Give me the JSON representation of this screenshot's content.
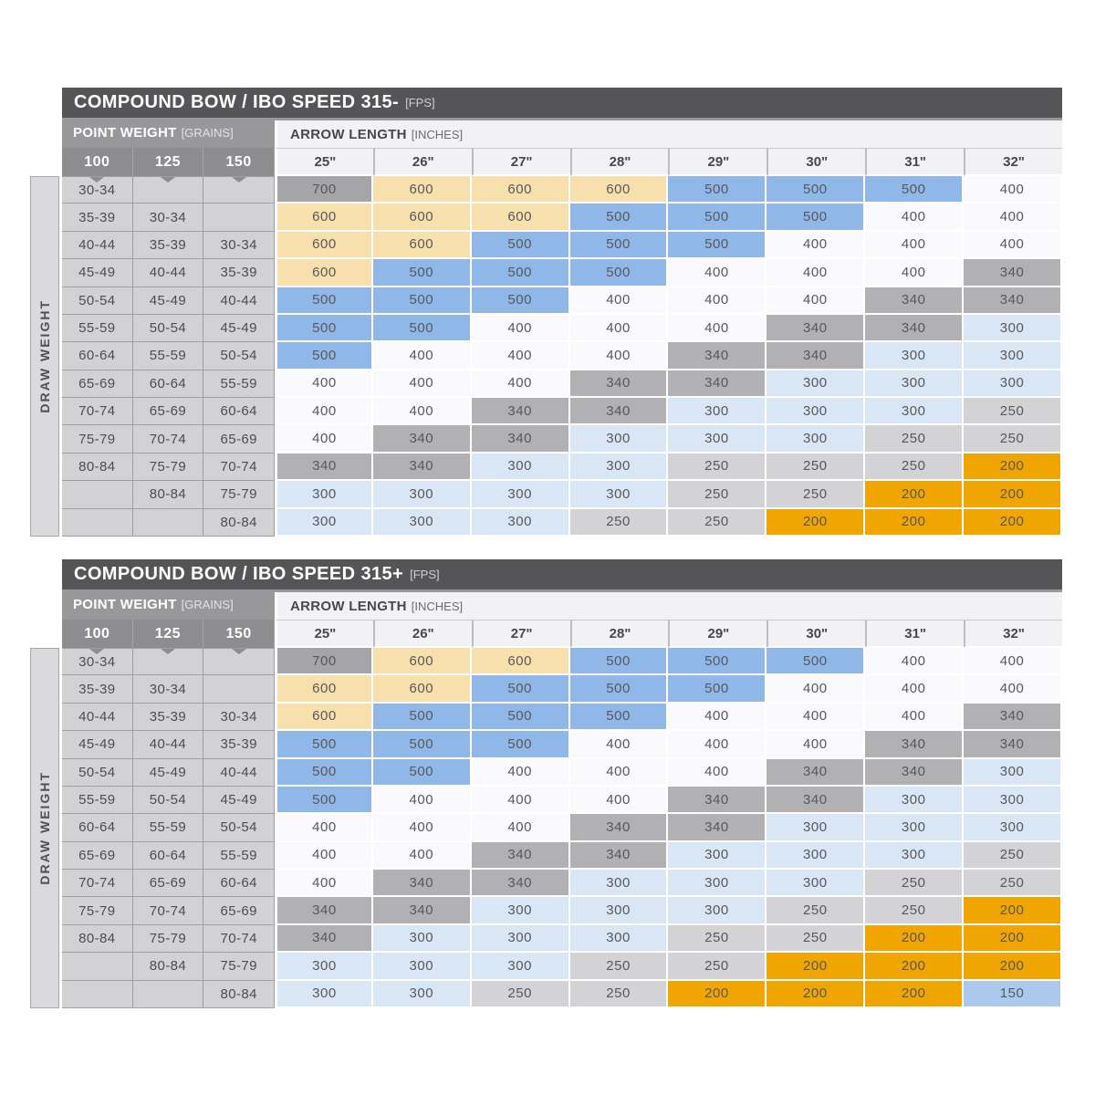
{
  "labels": {
    "fps_unit": "[FPS]",
    "point_weight": "POINT WEIGHT",
    "point_weight_unit": "[GRAINS]",
    "arrow_length": "ARROW LENGTH",
    "arrow_length_unit": "[INCHES]",
    "draw_weight": "DRAW WEIGHT"
  },
  "colors": {
    "title_bar_bg": "#555558",
    "point_weight_band_bg": "#98989b",
    "point_weight_header_bg": "#8d8d90",
    "arrow_length_band_bg": "#f2f2f4",
    "draw_weight_gutter_bg": "#dadadc",
    "draw_weight_cell_bg": "#d2d2d4",
    "cell_text": "#58585b",
    "spine": {
      "700": "#a5a5a8",
      "600": "#f7e0ab",
      "500": "#8fb7e8",
      "400": "#fafafc",
      "340": "#b1b1b4",
      "300": "#d9e6f6",
      "250": "#d3d3d5",
      "200": "#f0a500",
      "150": "#abc8ed"
    }
  },
  "chart_data": [
    {
      "type": "table",
      "title": "COMPOUND BOW / IBO SPEED 315-",
      "title_unit": "[FPS]",
      "point_weight_header": {
        "label": "POINT WEIGHT",
        "unit": "[GRAINS]",
        "columns": [
          "100",
          "125",
          "150"
        ]
      },
      "arrow_length_header": {
        "label": "ARROW LENGTH",
        "unit": "[INCHES]",
        "columns": [
          "25\"",
          "26\"",
          "27\"",
          "28\"",
          "29\"",
          "30\"",
          "31\"",
          "32\""
        ]
      },
      "draw_weight_label": "DRAW WEIGHT",
      "rows": [
        {
          "point_weights": [
            "30-34",
            "",
            ""
          ],
          "spines": [
            "700",
            "600",
            "600",
            "600",
            "500",
            "500",
            "500",
            "400"
          ]
        },
        {
          "point_weights": [
            "35-39",
            "30-34",
            ""
          ],
          "spines": [
            "600",
            "600",
            "600",
            "500",
            "500",
            "500",
            "400",
            "400"
          ]
        },
        {
          "point_weights": [
            "40-44",
            "35-39",
            "30-34"
          ],
          "spines": [
            "600",
            "600",
            "500",
            "500",
            "500",
            "400",
            "400",
            "400"
          ]
        },
        {
          "point_weights": [
            "45-49",
            "40-44",
            "35-39"
          ],
          "spines": [
            "600",
            "500",
            "500",
            "500",
            "400",
            "400",
            "400",
            "340"
          ]
        },
        {
          "point_weights": [
            "50-54",
            "45-49",
            "40-44"
          ],
          "spines": [
            "500",
            "500",
            "500",
            "400",
            "400",
            "400",
            "340",
            "340"
          ]
        },
        {
          "point_weights": [
            "55-59",
            "50-54",
            "45-49"
          ],
          "spines": [
            "500",
            "500",
            "400",
            "400",
            "400",
            "340",
            "340",
            "300"
          ]
        },
        {
          "point_weights": [
            "60-64",
            "55-59",
            "50-54"
          ],
          "spines": [
            "500",
            "400",
            "400",
            "400",
            "340",
            "340",
            "300",
            "300"
          ]
        },
        {
          "point_weights": [
            "65-69",
            "60-64",
            "55-59"
          ],
          "spines": [
            "400",
            "400",
            "400",
            "340",
            "340",
            "300",
            "300",
            "300"
          ]
        },
        {
          "point_weights": [
            "70-74",
            "65-69",
            "60-64"
          ],
          "spines": [
            "400",
            "400",
            "340",
            "340",
            "300",
            "300",
            "300",
            "250"
          ]
        },
        {
          "point_weights": [
            "75-79",
            "70-74",
            "65-69"
          ],
          "spines": [
            "400",
            "340",
            "340",
            "300",
            "300",
            "300",
            "250",
            "250"
          ]
        },
        {
          "point_weights": [
            "80-84",
            "75-79",
            "70-74"
          ],
          "spines": [
            "340",
            "340",
            "300",
            "300",
            "250",
            "250",
            "250",
            "200"
          ]
        },
        {
          "point_weights": [
            "",
            "80-84",
            "75-79"
          ],
          "spines": [
            "300",
            "300",
            "300",
            "300",
            "250",
            "250",
            "200",
            "200"
          ]
        },
        {
          "point_weights": [
            "",
            "",
            "80-84"
          ],
          "spines": [
            "300",
            "300",
            "300",
            "250",
            "250",
            "200",
            "200",
            "200"
          ]
        }
      ]
    },
    {
      "type": "table",
      "title": "COMPOUND BOW / IBO SPEED 315+",
      "title_unit": "[FPS]",
      "point_weight_header": {
        "label": "POINT WEIGHT",
        "unit": "[GRAINS]",
        "columns": [
          "100",
          "125",
          "150"
        ]
      },
      "arrow_length_header": {
        "label": "ARROW LENGTH",
        "unit": "[INCHES]",
        "columns": [
          "25\"",
          "26\"",
          "27\"",
          "28\"",
          "29\"",
          "30\"",
          "31\"",
          "32\""
        ]
      },
      "draw_weight_label": "DRAW WEIGHT",
      "rows": [
        {
          "point_weights": [
            "30-34",
            "",
            ""
          ],
          "spines": [
            "700",
            "600",
            "600",
            "500",
            "500",
            "500",
            "400",
            "400"
          ]
        },
        {
          "point_weights": [
            "35-39",
            "30-34",
            ""
          ],
          "spines": [
            "600",
            "600",
            "500",
            "500",
            "500",
            "400",
            "400",
            "400"
          ]
        },
        {
          "point_weights": [
            "40-44",
            "35-39",
            "30-34"
          ],
          "spines": [
            "600",
            "500",
            "500",
            "500",
            "400",
            "400",
            "400",
            "340"
          ]
        },
        {
          "point_weights": [
            "45-49",
            "40-44",
            "35-39"
          ],
          "spines": [
            "500",
            "500",
            "500",
            "400",
            "400",
            "400",
            "340",
            "340"
          ]
        },
        {
          "point_weights": [
            "50-54",
            "45-49",
            "40-44"
          ],
          "spines": [
            "500",
            "500",
            "400",
            "400",
            "400",
            "340",
            "340",
            "300"
          ]
        },
        {
          "point_weights": [
            "55-59",
            "50-54",
            "45-49"
          ],
          "spines": [
            "500",
            "400",
            "400",
            "400",
            "340",
            "340",
            "300",
            "300"
          ]
        },
        {
          "point_weights": [
            "60-64",
            "55-59",
            "50-54"
          ],
          "spines": [
            "400",
            "400",
            "400",
            "340",
            "340",
            "300",
            "300",
            "300"
          ]
        },
        {
          "point_weights": [
            "65-69",
            "60-64",
            "55-59"
          ],
          "spines": [
            "400",
            "400",
            "340",
            "340",
            "300",
            "300",
            "300",
            "250"
          ]
        },
        {
          "point_weights": [
            "70-74",
            "65-69",
            "60-64"
          ],
          "spines": [
            "400",
            "340",
            "340",
            "300",
            "300",
            "300",
            "250",
            "250"
          ]
        },
        {
          "point_weights": [
            "75-79",
            "70-74",
            "65-69"
          ],
          "spines": [
            "340",
            "340",
            "300",
            "300",
            "300",
            "250",
            "250",
            "200"
          ]
        },
        {
          "point_weights": [
            "80-84",
            "75-79",
            "70-74"
          ],
          "spines": [
            "340",
            "300",
            "300",
            "300",
            "250",
            "250",
            "200",
            "200"
          ]
        },
        {
          "point_weights": [
            "",
            "80-84",
            "75-79"
          ],
          "spines": [
            "300",
            "300",
            "300",
            "250",
            "250",
            "200",
            "200",
            "200"
          ]
        },
        {
          "point_weights": [
            "",
            "",
            "80-84"
          ],
          "spines": [
            "300",
            "300",
            "250",
            "250",
            "200",
            "200",
            "200",
            "150"
          ]
        }
      ]
    }
  ]
}
